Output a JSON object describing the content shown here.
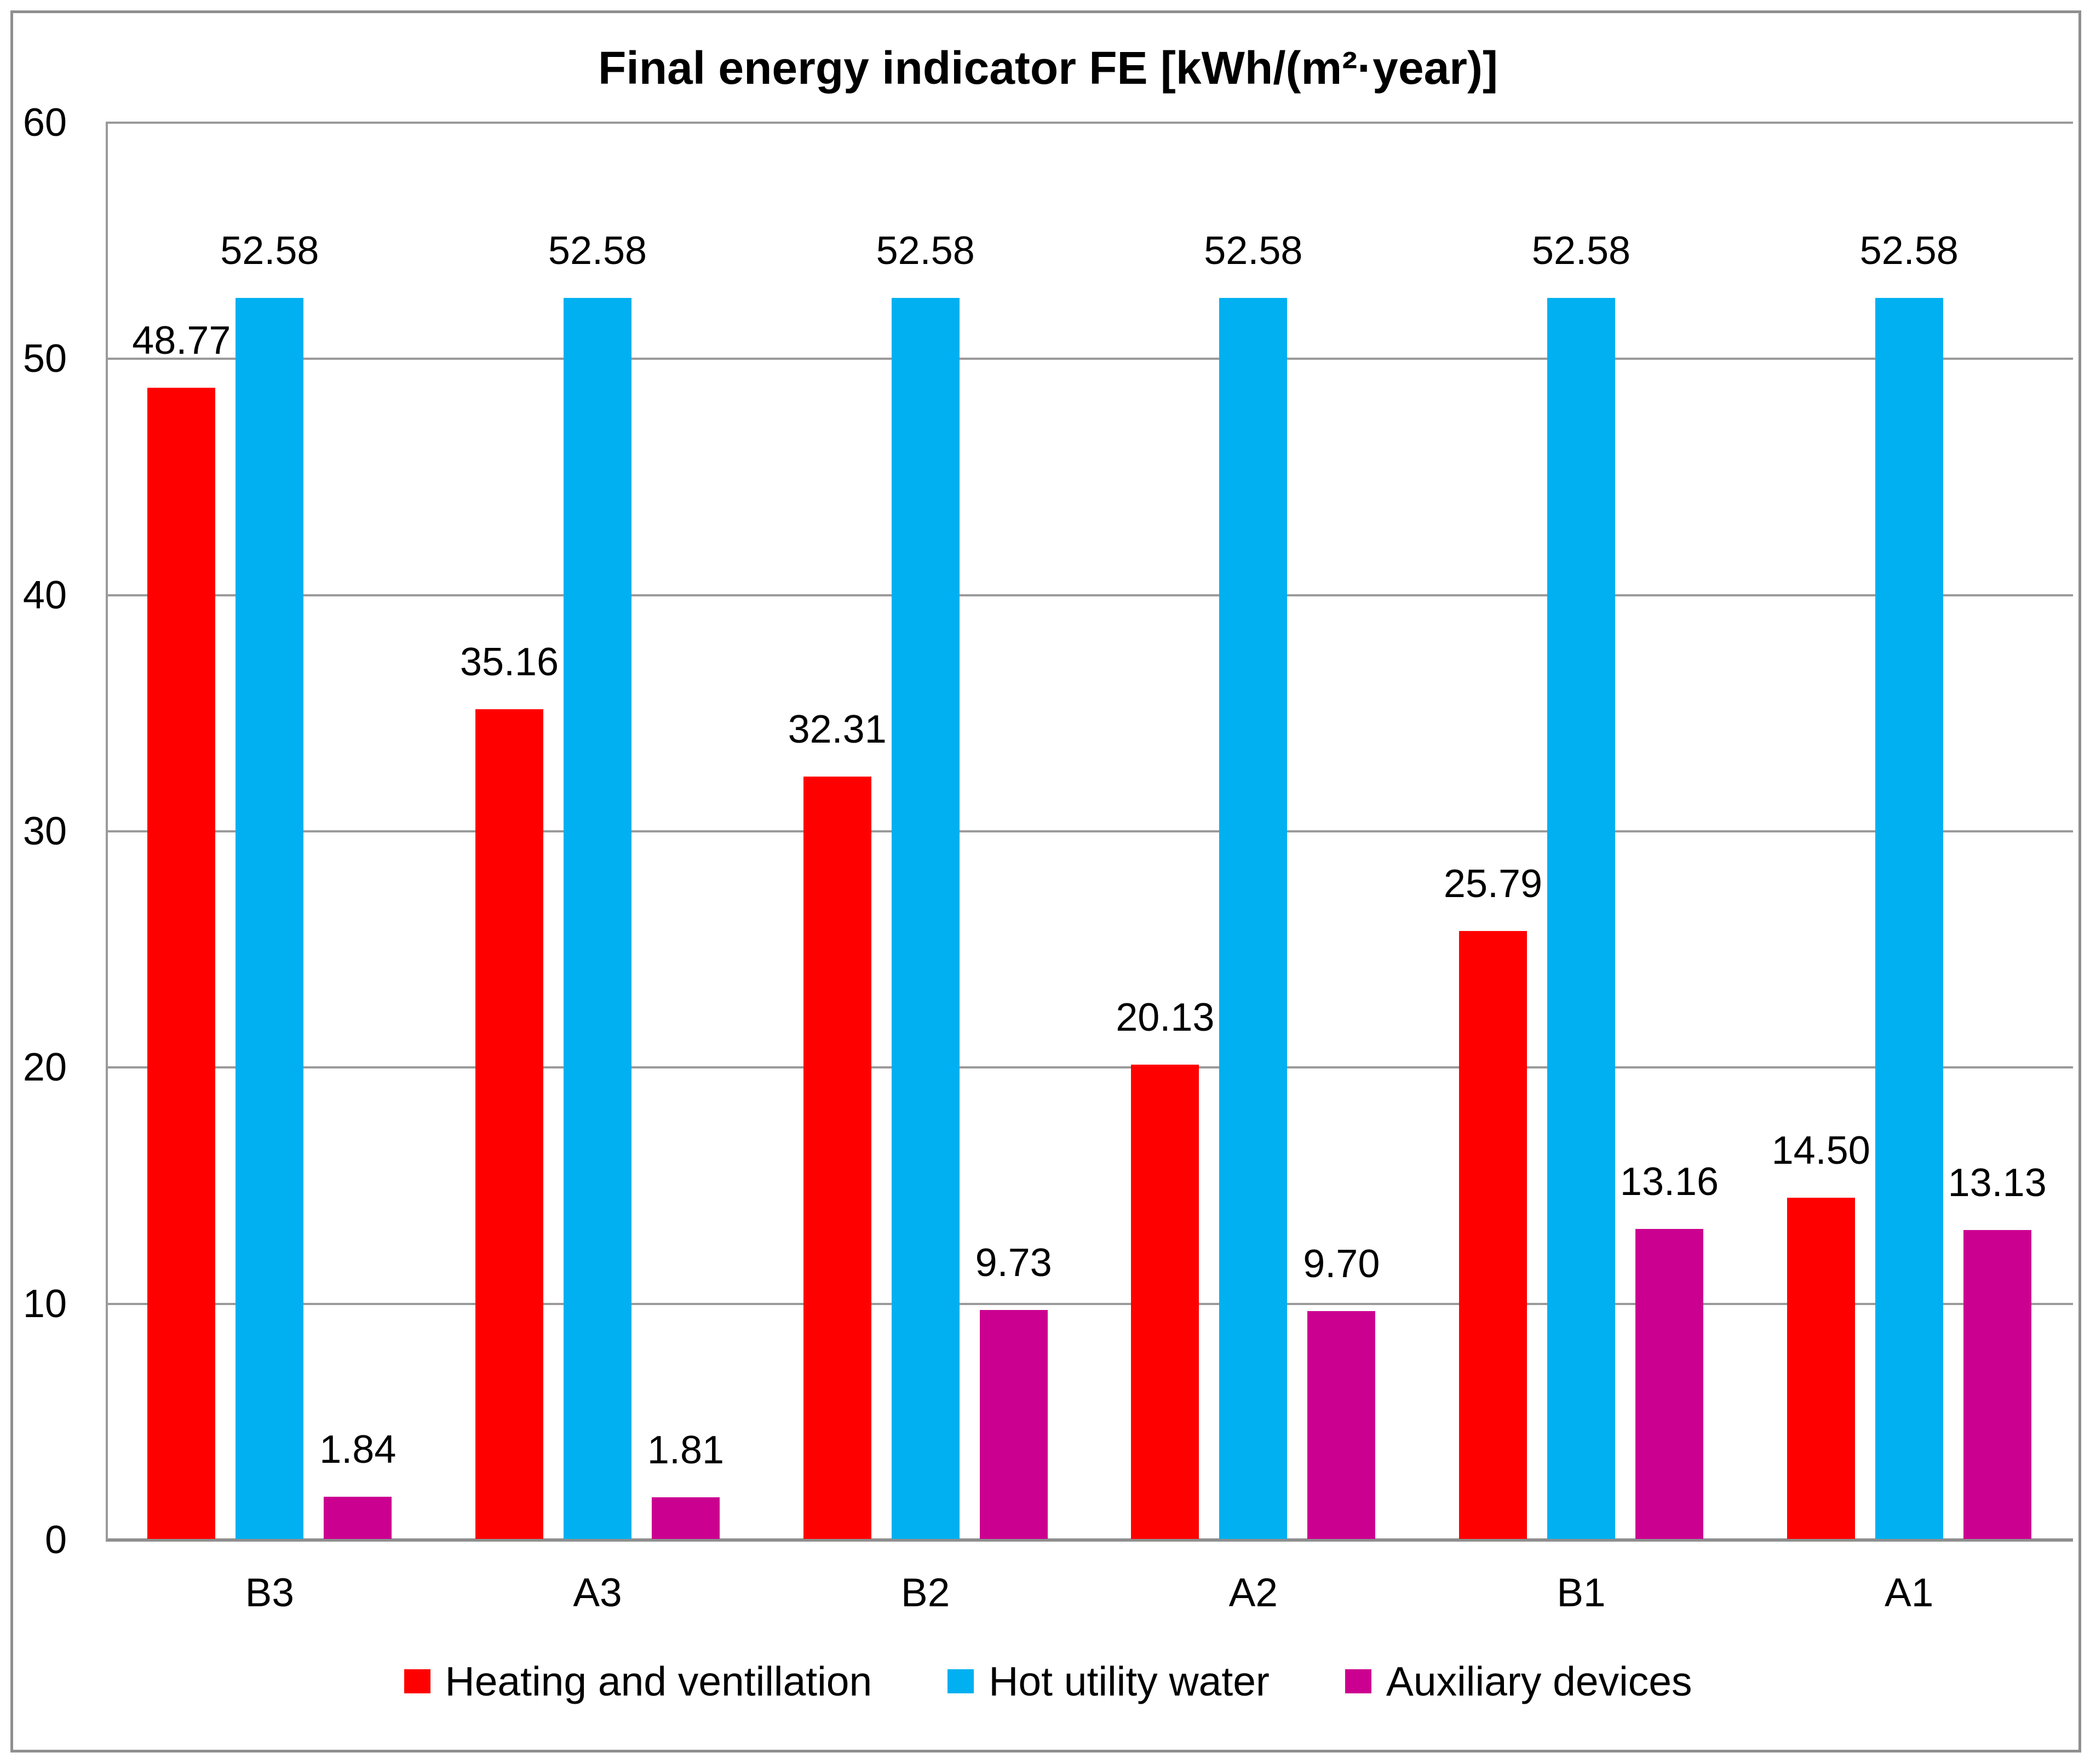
{
  "chart_data": {
    "type": "bar",
    "title": "Final energy indicator FE [kWh/(m²·year)]",
    "categories": [
      "B3",
      "A3",
      "B2",
      "A2",
      "B1",
      "A1"
    ],
    "series": [
      {
        "name": "Heating and ventillation",
        "color": "#FF0000",
        "values": [
          48.77,
          35.16,
          32.31,
          20.13,
          25.79,
          14.5
        ]
      },
      {
        "name": "Hot utility water",
        "color": "#00B0F0",
        "values": [
          52.58,
          52.58,
          52.58,
          52.58,
          52.58,
          52.58
        ]
      },
      {
        "name": "Auxiliary devices",
        "color": "#CB0090",
        "values": [
          1.84,
          1.81,
          9.73,
          9.7,
          13.16,
          13.13
        ]
      }
    ],
    "ylim": [
      0,
      60
    ],
    "yticks": [
      0,
      10,
      20,
      30,
      40,
      50,
      60
    ],
    "grid": true,
    "legend_position": "bottom",
    "value_label_decimals": 2,
    "xlabel": "",
    "ylabel": ""
  },
  "colors": {
    "grid": "#9A9A9A",
    "axis": "#8F8F8F",
    "figure_border": "#8F8F8F",
    "text": "#000000",
    "background": "#FFFFFF"
  }
}
